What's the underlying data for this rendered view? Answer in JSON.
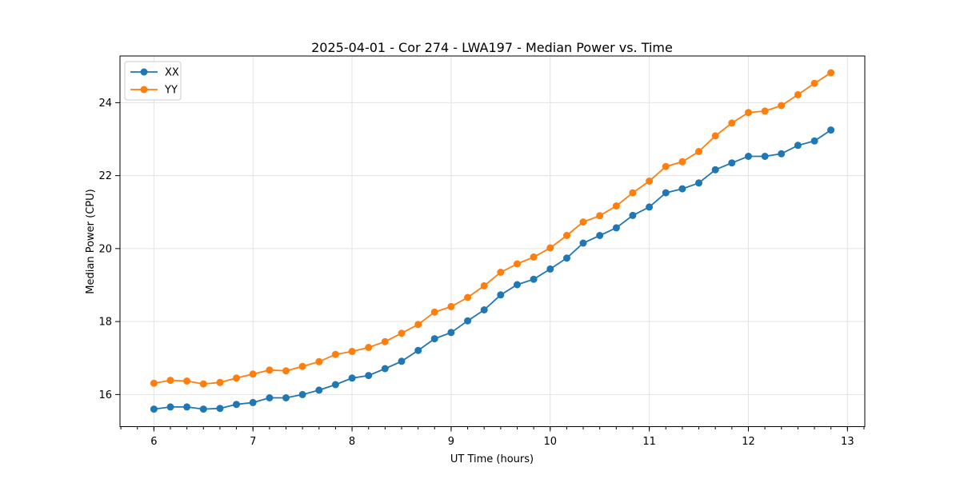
{
  "chart_data": {
    "type": "line",
    "title": "2025-04-01 - Cor 274 - LWA197 - Median Power vs. Time",
    "xlabel": "UT Time (hours)",
    "ylabel": "Median Power (CPU)",
    "xlim": [
      5.658,
      13.175
    ],
    "ylim": [
      15.12,
      25.28
    ],
    "xticks": [
      6,
      7,
      8,
      9,
      10,
      11,
      12,
      13
    ],
    "yticks": [
      16,
      18,
      20,
      22,
      24
    ],
    "x_minor_step": 0.166667,
    "grid": true,
    "grid_color": "#e3e3e3",
    "legend_position": "upper-left",
    "x": [
      6.0,
      6.167,
      6.333,
      6.5,
      6.667,
      6.833,
      7.0,
      7.167,
      7.333,
      7.5,
      7.667,
      7.833,
      8.0,
      8.167,
      8.333,
      8.5,
      8.667,
      8.833,
      9.0,
      9.167,
      9.333,
      9.5,
      9.667,
      9.833,
      10.0,
      10.167,
      10.333,
      10.5,
      10.667,
      10.833,
      11.0,
      11.167,
      11.333,
      11.5,
      11.667,
      11.833,
      12.0,
      12.167,
      12.333,
      12.5,
      12.667,
      12.833
    ],
    "series": [
      {
        "name": "XX",
        "color": "#1f77b4",
        "values": [
          15.6,
          15.66,
          15.66,
          15.6,
          15.62,
          15.73,
          15.78,
          15.91,
          15.91,
          16.0,
          16.12,
          16.27,
          16.45,
          16.52,
          16.71,
          16.91,
          17.21,
          17.53,
          17.7,
          18.02,
          18.32,
          18.73,
          19.01,
          19.16,
          19.44,
          19.74,
          20.15,
          20.36,
          20.57,
          20.91,
          21.14,
          21.53,
          21.64,
          21.8,
          22.16,
          22.35,
          22.53,
          22.53,
          22.6,
          22.83,
          22.95,
          23.25
        ]
      },
      {
        "name": "YY",
        "color": "#ff7f0e",
        "values": [
          16.31,
          16.39,
          16.37,
          16.29,
          16.33,
          16.45,
          16.56,
          16.67,
          16.65,
          16.77,
          16.9,
          17.1,
          17.18,
          17.29,
          17.45,
          17.68,
          17.92,
          18.26,
          18.41,
          18.66,
          18.98,
          19.35,
          19.58,
          19.77,
          20.02,
          20.36,
          20.73,
          20.9,
          21.17,
          21.53,
          21.85,
          22.25,
          22.38,
          22.66,
          23.09,
          23.44,
          23.73,
          23.77,
          23.92,
          24.22,
          24.53,
          24.82
        ]
      }
    ]
  }
}
